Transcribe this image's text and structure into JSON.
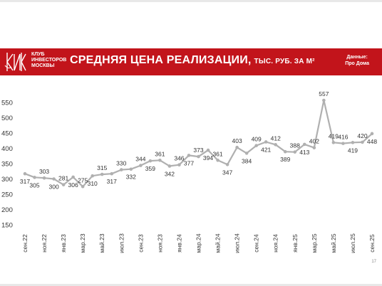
{
  "header": {
    "logo_lines": [
      "КЛУБ",
      "ИНВЕСТОРОВ",
      "МОСКВЫ"
    ],
    "title": "СРЕДНЯЯ ЦЕНА РЕАЛИЗАЦИИ,",
    "title_units": "ТЫС. РУБ. ЗА М²",
    "source_label": "Данные:",
    "source_name": "Про Дома"
  },
  "page_number": "17",
  "colors": {
    "banner": "#c2141b",
    "line": "#b0b0b0",
    "marker": "#b0b0b0",
    "text": "#333333"
  },
  "chart_data": {
    "type": "line",
    "title": "",
    "xlabel": "",
    "ylabel": "",
    "ylim": [
      100,
      575
    ],
    "yticks": [
      150,
      200,
      250,
      300,
      350,
      400,
      450,
      500,
      550
    ],
    "grid": false,
    "legend": "none",
    "x_tick_labels": [
      "сен.22",
      "ноя.22",
      "янв.23",
      "мар.23",
      "май.23",
      "июл.23",
      "сен.23",
      "ноя.23",
      "янв.24",
      "мар.24",
      "май.24",
      "июл.24",
      "сен.24",
      "ноя.24",
      "янв.25",
      "мар.25",
      "май.25",
      "июл.25",
      "сен.25"
    ],
    "x": [
      "сен.22",
      "окт.22",
      "ноя.22",
      "дек.22",
      "янв.23",
      "фев.23",
      "мар.23",
      "апр.23",
      "май.23",
      "июн.23",
      "июл.23",
      "авг.23",
      "сен.23",
      "окт.23",
      "ноя.23",
      "дек.23",
      "янв.24",
      "фев.24",
      "мар.24",
      "апр.24",
      "май.24",
      "июн.24",
      "июл.24",
      "авг.24",
      "сен.24",
      "окт.24",
      "ноя.24",
      "дек.24",
      "янв.25",
      "фев.25",
      "мар.25",
      "апр.25",
      "май.25",
      "июн.25",
      "июл.25",
      "авг.25",
      "сен.25"
    ],
    "values": [
      317,
      305,
      303,
      300,
      281,
      306,
      275,
      310,
      315,
      317,
      330,
      332,
      344,
      359,
      361,
      342,
      346,
      377,
      373,
      394,
      361,
      347,
      403,
      384,
      409,
      421,
      412,
      389,
      388,
      413,
      402,
      557,
      419,
      416,
      419,
      420,
      448
    ],
    "label_positions": [
      "below",
      "below",
      "above",
      "below",
      "above",
      "below",
      "above",
      "below",
      "above",
      "below",
      "above",
      "below",
      "above",
      "below",
      "above",
      "below",
      "above",
      "below",
      "above",
      "below",
      "above",
      "below",
      "above",
      "below",
      "above",
      "below",
      "above",
      "below",
      "above",
      "below",
      "above",
      "above",
      "above",
      "above",
      "below",
      "above",
      "below"
    ]
  }
}
